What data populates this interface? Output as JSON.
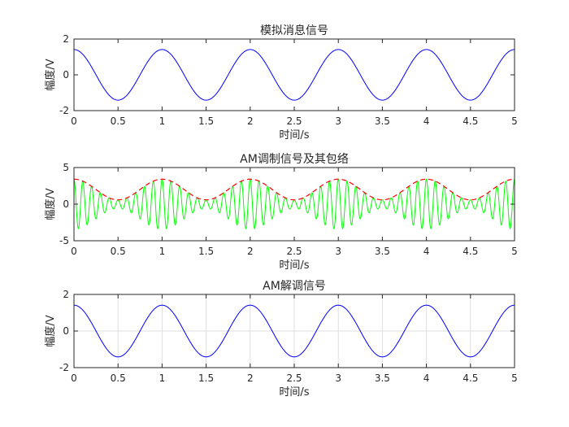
{
  "chart_data": [
    {
      "type": "line",
      "title": "模拟消息信号",
      "xlabel": "时间/s",
      "ylabel": "幅度/V",
      "xlim": [
        0,
        5
      ],
      "ylim": [
        -2,
        2
      ],
      "xticks": [
        "0",
        "0.5",
        "1",
        "1.5",
        "2",
        "2.5",
        "3",
        "3.5",
        "4",
        "4.5",
        "5"
      ],
      "yticks": [
        "-2",
        "0",
        "2"
      ],
      "grid": false,
      "series": [
        {
          "kind": "cosine",
          "amplitude": 1.414,
          "frequency_hz": 1,
          "offset": 0,
          "color": "#0000ff",
          "line": "solid"
        }
      ]
    },
    {
      "type": "line",
      "title": "AM调制信号及其包络",
      "xlabel": "时间/s",
      "ylabel": "幅度/V",
      "xlim": [
        0,
        5
      ],
      "ylim": [
        -5,
        5
      ],
      "xticks": [
        "0",
        "0.5",
        "1",
        "1.5",
        "2",
        "2.5",
        "3",
        "3.5",
        "4",
        "4.5",
        "5"
      ],
      "yticks": [
        "-5",
        "0",
        "5"
      ],
      "grid": false,
      "series": [
        {
          "kind": "am",
          "dc": 2,
          "amplitude": 1.414,
          "frequency_hz": 1,
          "carrier_hz": 10,
          "color": "#00ff00",
          "line": "solid"
        },
        {
          "kind": "envelope",
          "dc": 2,
          "amplitude": 1.414,
          "frequency_hz": 1,
          "color": "#ff0000",
          "line": "dashed"
        }
      ]
    },
    {
      "type": "line",
      "title": "AM解调信号",
      "xlabel": "时间/s",
      "ylabel": "幅度/V",
      "xlim": [
        0,
        5
      ],
      "ylim": [
        -2,
        2
      ],
      "xticks": [
        "0",
        "0.5",
        "1",
        "1.5",
        "2",
        "2.5",
        "3",
        "3.5",
        "4",
        "4.5",
        "5"
      ],
      "yticks": [
        "-2",
        "0",
        "2"
      ],
      "grid": true,
      "series": [
        {
          "kind": "cosine",
          "amplitude": 1.414,
          "frequency_hz": 1,
          "offset": 0,
          "color": "#0000ff",
          "line": "solid"
        }
      ]
    }
  ],
  "colors": {
    "axis": "#262626",
    "grid": "#dfdfdf",
    "background": "#ffffff"
  }
}
